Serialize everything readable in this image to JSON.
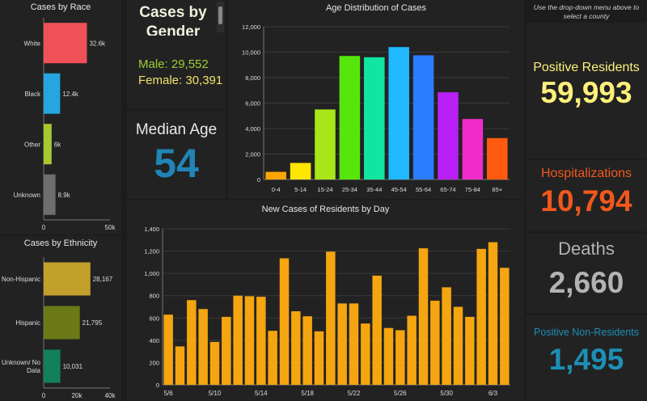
{
  "race": {
    "title": "Cases by Race",
    "chart_data": {
      "type": "bar",
      "orientation": "horizontal",
      "categories": [
        "White",
        "Black",
        "Other",
        "Unknown"
      ],
      "values": [
        32600,
        12400,
        6000,
        8900
      ],
      "data_labels": [
        "32.6k",
        "12.4k",
        "6k",
        "8.9k"
      ],
      "colors": [
        "#ef5159",
        "#26a5e0",
        "#a6c92e",
        "#6e6e6e"
      ],
      "xlim": [
        0,
        50000
      ],
      "xticks": [
        "0",
        "50k"
      ]
    }
  },
  "ethnicity": {
    "title": "Cases by Ethnicity",
    "chart_data": {
      "type": "bar",
      "orientation": "horizontal",
      "categories": [
        "Non-Hispanic",
        "Hispanic",
        "Unknown/ No Data"
      ],
      "values": [
        28167,
        21795,
        10031
      ],
      "data_labels": [
        "28,167",
        "21,795",
        "10,031"
      ],
      "colors": [
        "#c3a02c",
        "#6b7a16",
        "#12805a"
      ],
      "xlim": [
        0,
        40000
      ],
      "xticks": [
        "0",
        "20k",
        "40k"
      ]
    }
  },
  "gender": {
    "title": "Cases by Gender",
    "male": "Male: 29,552",
    "female": "Female: 30,391"
  },
  "median": {
    "label": "Median Age",
    "value": "54"
  },
  "age": {
    "title": "Age Distribution of Cases",
    "chart_data": {
      "type": "bar",
      "categories": [
        "0-4",
        "5-14",
        "15-24",
        "25-34",
        "35-44",
        "45-54",
        "55-64",
        "65-74",
        "75-84",
        "85+"
      ],
      "values": [
        600,
        1300,
        5500,
        9700,
        9600,
        10400,
        9750,
        6850,
        4750,
        3250
      ],
      "colors": [
        "#ffa500",
        "#ffe600",
        "#a8e61a",
        "#56e60c",
        "#10e6a0",
        "#20b8ff",
        "#2a7dff",
        "#b820f5",
        "#f02cc8",
        "#ff5a10"
      ],
      "ylim": [
        0,
        12000
      ],
      "yticks": [
        "0",
        "2,000",
        "4,000",
        "6,000",
        "8,000",
        "10,000",
        "12,000"
      ]
    }
  },
  "daily": {
    "title": "New Cases of Residents by Day",
    "chart_data": {
      "type": "bar",
      "color": "#f5a50f",
      "xticks": [
        "5/6",
        "5/10",
        "5/14",
        "5/18",
        "5/22",
        "5/26",
        "5/30",
        "6/3"
      ],
      "values": [
        630,
        345,
        760,
        680,
        385,
        610,
        800,
        795,
        790,
        485,
        1135,
        660,
        615,
        480,
        1195,
        730,
        730,
        550,
        980,
        510,
        490,
        620,
        1225,
        755,
        875,
        700,
        610,
        1220,
        1280,
        1050
      ],
      "ylim": [
        0,
        1400
      ],
      "yticks": [
        "0",
        "200",
        "400",
        "600",
        "800",
        "1,000",
        "1,200",
        "1,400"
      ]
    }
  },
  "right": {
    "hint": "Use the drop-down menu above to select a county",
    "positive_label": "Positive Residents",
    "positive_value": "59,993",
    "positive_color": "#fff17a",
    "hosp_label": "Hospitalizations",
    "hosp_value": "10,794",
    "hosp_color": "#f2581c",
    "deaths_label": "Deaths",
    "deaths_value": "2,660",
    "deaths_color": "#b3b3b3",
    "nonres_label": "Positive Non-Residents",
    "nonres_value": "1,495",
    "nonres_color": "#1d8fb5"
  }
}
